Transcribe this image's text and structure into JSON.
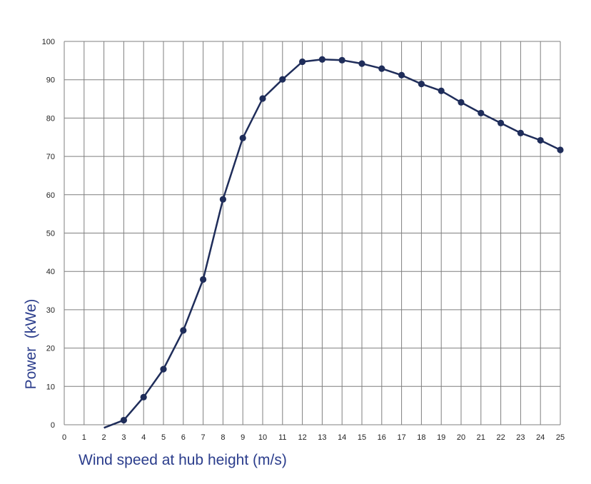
{
  "chart_data": {
    "type": "line",
    "title": "",
    "xlabel": "Wind speed at hub height (m/s)",
    "ylabel": "Power  (kWe)",
    "xlim": [
      0,
      25
    ],
    "ylim": [
      0,
      100
    ],
    "x_ticks": [
      0,
      1,
      2,
      3,
      4,
      5,
      6,
      7,
      8,
      9,
      10,
      11,
      12,
      13,
      14,
      15,
      16,
      17,
      18,
      19,
      20,
      21,
      22,
      23,
      24,
      25
    ],
    "y_ticks": [
      0,
      10,
      20,
      30,
      40,
      50,
      60,
      70,
      80,
      90,
      100
    ],
    "grid": true,
    "legend": "none",
    "line_color": "#1f2d5a",
    "label_color": "#2b3d8c",
    "series": [
      {
        "x": [
          3,
          4,
          5,
          6,
          7,
          8,
          9,
          10,
          11,
          12,
          13,
          14,
          15,
          16,
          17,
          18,
          19,
          20,
          21,
          22,
          23,
          24,
          25
        ],
        "y": [
          1.2,
          7.2,
          14.5,
          24.6,
          37.9,
          58.8,
          74.8,
          85.1,
          90.1,
          94.7,
          95.3,
          95.1,
          94.2,
          92.9,
          91.2,
          88.9,
          87.1,
          84.1,
          81.3,
          78.7,
          76.1,
          74.2,
          71.7
        ]
      }
    ],
    "line_start": [
      2,
      -0.8
    ]
  }
}
